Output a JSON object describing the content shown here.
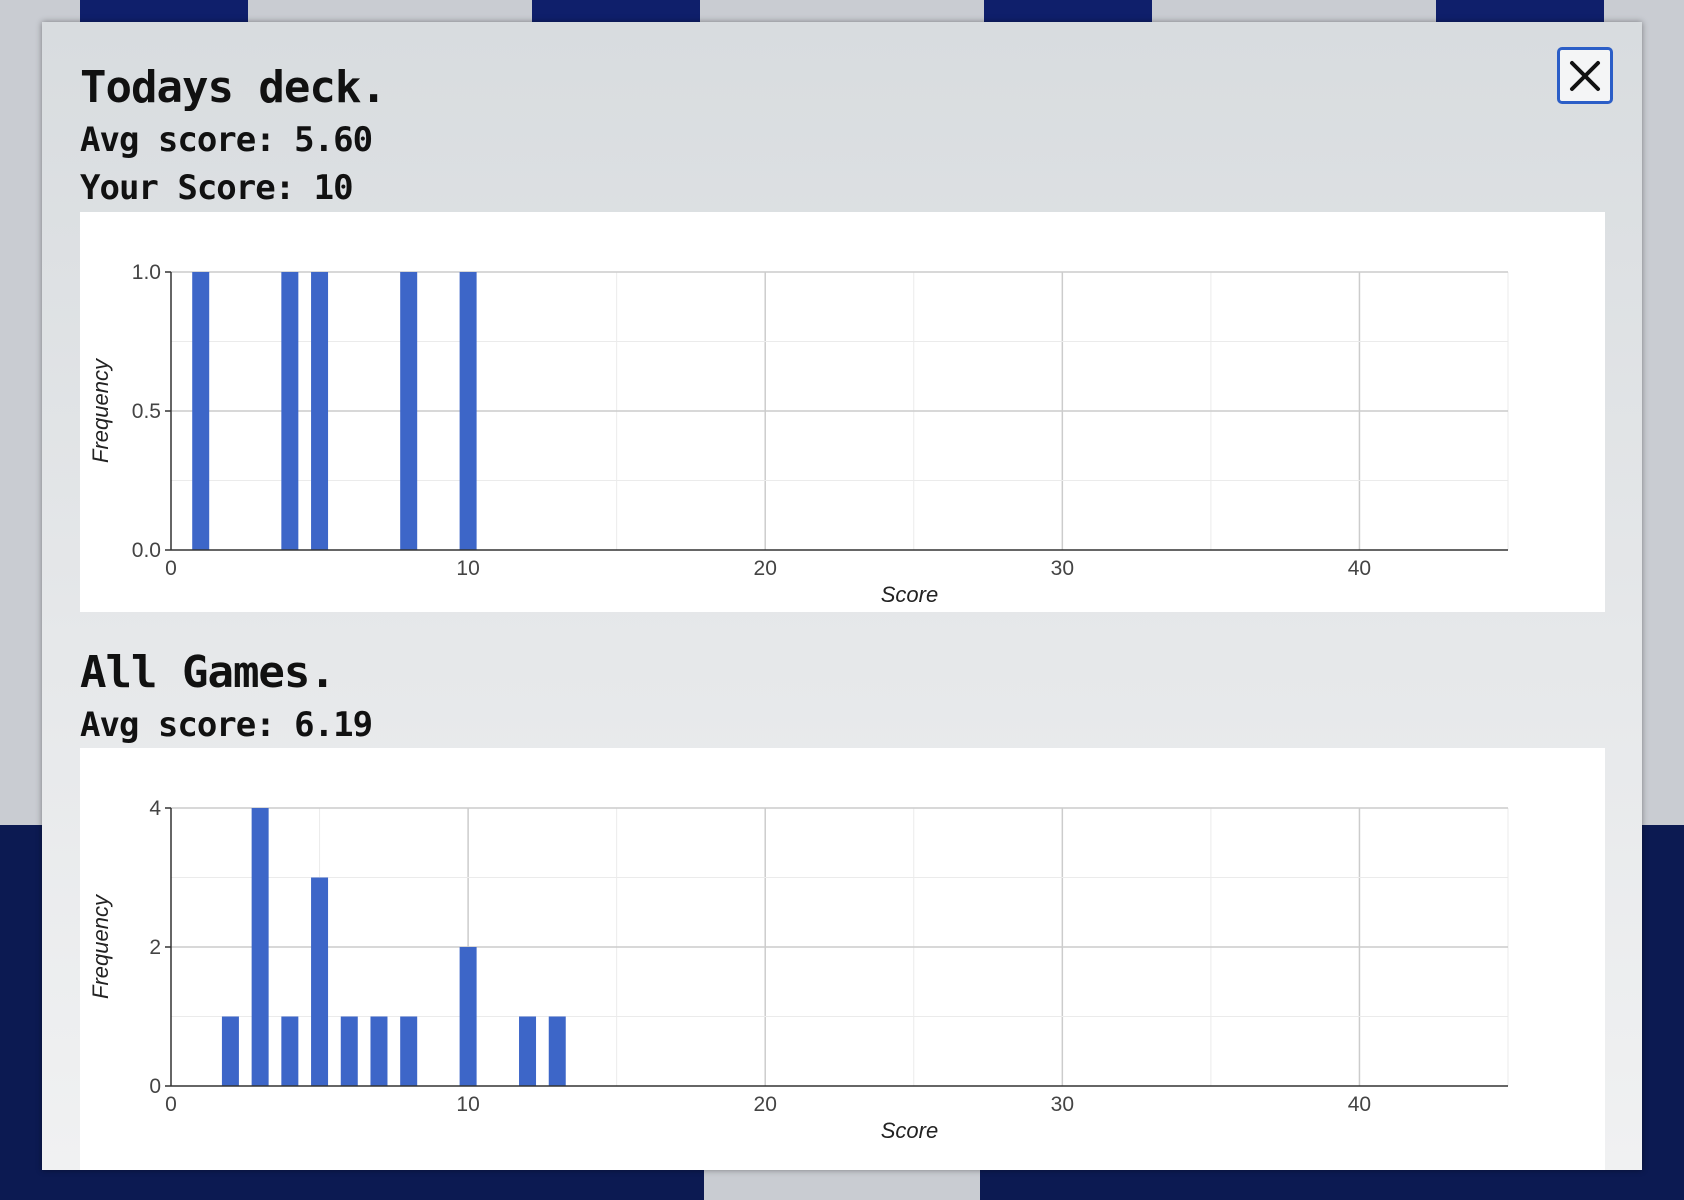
{
  "window": {
    "close_icon": "close-icon"
  },
  "todays_deck": {
    "title": "Todays deck.",
    "avg_score": "Avg score: 5.60",
    "your_score": "Your Score: 10"
  },
  "all_games": {
    "title": "All Games.",
    "avg_score": "Avg score: 6.19"
  },
  "colors": {
    "bar": "#3d66c8",
    "accent": "#2b5ec7",
    "board": "#0c1a52"
  },
  "chart_data": [
    {
      "type": "bar",
      "title": "",
      "xlabel": "Score",
      "ylabel": "Frequency",
      "xlim": [
        0,
        45
      ],
      "ylim": [
        0,
        1.0
      ],
      "x_ticks": [
        "0",
        "10",
        "20",
        "30",
        "40"
      ],
      "y_ticks": [
        "0.0",
        "0.5",
        "1.0"
      ],
      "grid": true,
      "x": [
        1,
        4,
        5,
        8,
        10
      ],
      "values": [
        1,
        1,
        1,
        1,
        1
      ]
    },
    {
      "type": "bar",
      "title": "",
      "xlabel": "Score",
      "ylabel": "Frequency",
      "xlim": [
        0,
        45
      ],
      "ylim": [
        0,
        4
      ],
      "x_ticks": [
        "0",
        "10",
        "20",
        "30",
        "40"
      ],
      "y_ticks": [
        "0",
        "2",
        "4"
      ],
      "grid": true,
      "x": [
        2,
        3,
        4,
        5,
        6,
        7,
        8,
        10,
        12,
        13
      ],
      "values": [
        1,
        4,
        1,
        3,
        1,
        1,
        1,
        2,
        1,
        1
      ]
    }
  ]
}
